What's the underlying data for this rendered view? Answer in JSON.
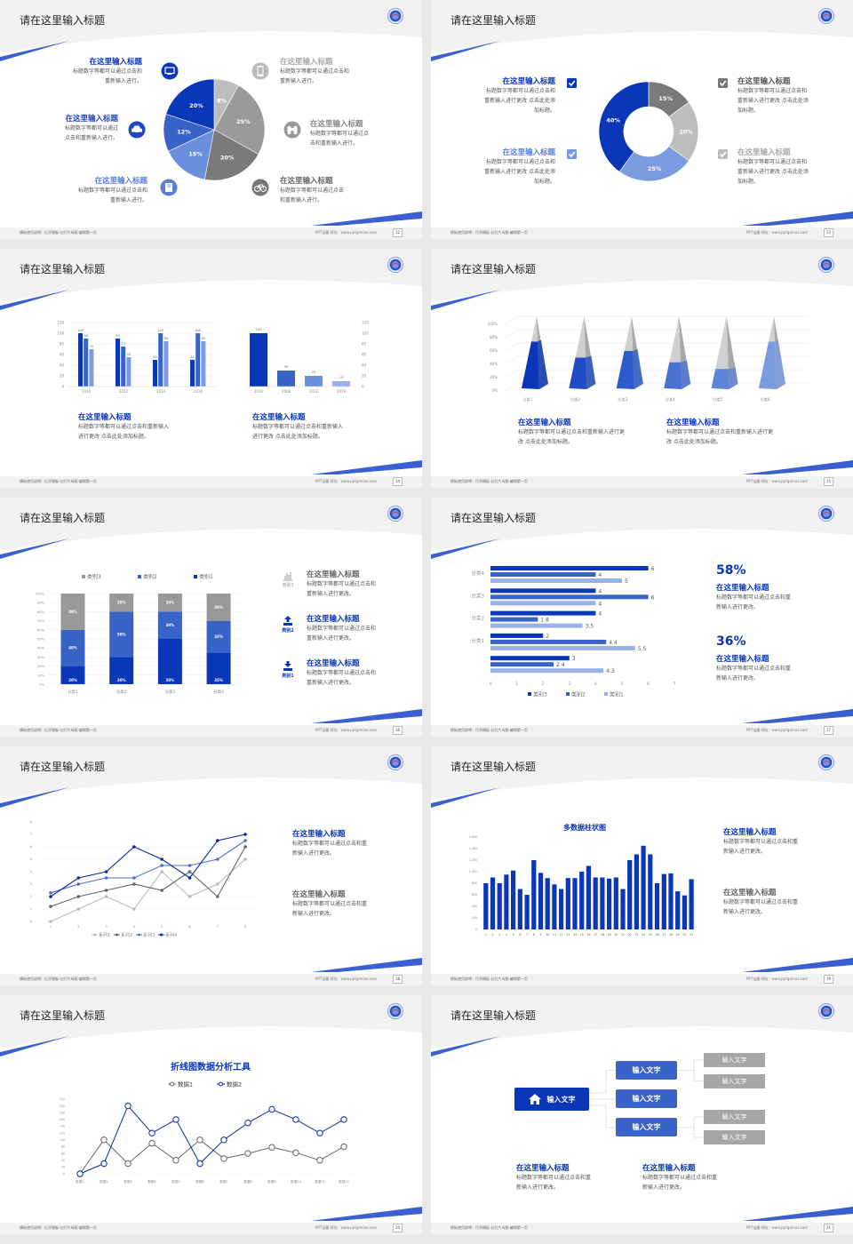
{
  "footer": {
    "left": "模板使用说明：打开模板-幻灯片母版-编辑第一页",
    "right": "PPT宝藏 网址：www.pptgenius.com"
  },
  "colors": {
    "dark_blue": "#0a36b8",
    "mid_blue": "#3a63c8",
    "light_blue": "#7b9be0",
    "pale_blue": "#9bb1e8",
    "dark_gray": "#666666",
    "gray": "#999999",
    "light_gray": "#bbbbbb"
  },
  "slides": [
    {
      "page": "12",
      "title": "请在这里输入标题",
      "left_items": [
        {
          "title": "在这里输入标题",
          "lines": [
            "标题数字等都可以通过点击和",
            "重新输入进行。"
          ],
          "icon": "monitor-icon"
        },
        {
          "title": "在这里输入标题",
          "lines": [
            "标题数字等都可以通过",
            "点击和重新输入进行。"
          ],
          "icon": "car-icon"
        },
        {
          "title": "在这里输入标题",
          "lines": [
            "标题数字等都可以通过点击和",
            "重新输入进行。"
          ],
          "icon": "book-icon"
        }
      ],
      "right_items": [
        {
          "title": "在这里输入标题",
          "lines": [
            "标题数字等都可以通过点击和",
            "重新输入进行。"
          ],
          "icon": "phone-icon"
        },
        {
          "title": "在这里输入标题",
          "lines": [
            "标题数字等都可以通过点",
            "击和重新输入进行。"
          ],
          "icon": "binoculars-icon"
        },
        {
          "title": "在这里输入标题",
          "lines": [
            "标题数字等都可以通过点击",
            "和重新输入进行。"
          ],
          "icon": "bicycle-icon"
        }
      ]
    },
    {
      "page": "13",
      "title": "请在这里输入标题",
      "left_items": [
        {
          "title": "在这里输入标题",
          "lines": [
            "标题数字等都可以通过点击和",
            "重新输入进行更改 点击此处添",
            "加标题。"
          ]
        },
        {
          "title": "在这里输入标题",
          "lines": [
            "标题数字等都可以通过点击和",
            "重新输入进行更改 点击此处添",
            "加标题。"
          ]
        }
      ],
      "right_items": [
        {
          "title": "在这里输入标题",
          "lines": [
            "标题数字等都可以通过点击和",
            "重新输入进行更改 点击此处添",
            "加标题。"
          ]
        },
        {
          "title": "在这里输入标题",
          "lines": [
            "标题数字等都可以通过点击和",
            "重新输入进行更改 点击此处添",
            "加标题。"
          ]
        }
      ]
    },
    {
      "page": "14",
      "title": "请在这里输入标题",
      "items": [
        {
          "title": "在这里输入标题",
          "lines": [
            "标题数字等都可以通过点击和重新输入",
            "进行更改 点击此处添加标题。"
          ]
        },
        {
          "title": "在这里输入标题",
          "lines": [
            "标题数字等都可以通过点击和重新输入",
            "进行更改 点击此处添加标题。"
          ]
        }
      ]
    },
    {
      "page": "15",
      "title": "请在这里输入标题",
      "items": [
        {
          "title": "在这里输入标题",
          "lines": [
            "标题数字等都可以通过点击和重新输入进行更",
            "改 点击此处添加标题。"
          ]
        },
        {
          "title": "在这里输入标题",
          "lines": [
            "标题数字等都可以通过点击和重新输入进行更",
            "改 点击此处添加标题。"
          ]
        }
      ]
    },
    {
      "page": "16",
      "title": "请在这里输入标题",
      "items": [
        {
          "title": "在这里输入标题",
          "lines": [
            "标题数字等都可以通过点击和",
            "重新输入进行更改。"
          ],
          "icon": "bar-chart-icon",
          "tag": "类别3"
        },
        {
          "title": "在这里输入标题",
          "lines": [
            "标题数字等都可以通过点击和",
            "重新输入进行更改。"
          ],
          "icon": "upload-icon",
          "tag": "类别2"
        },
        {
          "title": "在这里输入标题",
          "lines": [
            "标题数字等都可以通过点击和",
            "重新输入进行更改。"
          ],
          "icon": "download-icon",
          "tag": "类别1"
        }
      ]
    },
    {
      "page": "17",
      "title": "请在这里输入标题",
      "stats": [
        {
          "value": "58%",
          "title": "在这里输入标题",
          "lines": [
            "标题数字等都可以通过点击和重",
            "新输入进行更改。"
          ]
        },
        {
          "value": "36%",
          "title": "在这里输入标题",
          "lines": [
            "标题数字等都可以通过点击和重",
            "新输入进行更改。"
          ]
        }
      ]
    },
    {
      "page": "18",
      "title": "请在这里输入标题",
      "items": [
        {
          "title": "在这里输入标题",
          "lines": [
            "标题数字等都可以通过点击和重",
            "新输入进行更改。"
          ]
        },
        {
          "title": "在这里输入标题",
          "lines": [
            "标题数字等都可以通过点击和重",
            "新输入进行更改。"
          ]
        }
      ]
    },
    {
      "page": "19",
      "title": "请在这里输入标题",
      "items": [
        {
          "title": "在这里输入标题",
          "lines": [
            "标题数字等都可以通过点击和重",
            "新输入进行更改。"
          ]
        },
        {
          "title": "在这里输入标题",
          "lines": [
            "标题数字等都可以通过点击和重",
            "新输入进行更改。"
          ]
        }
      ]
    },
    {
      "page": "20",
      "title": "请在这里输入标题"
    },
    {
      "page": "21",
      "title": "请在这里输入标题",
      "tree": {
        "root": "输入文字",
        "mid": [
          "输入文字",
          "输入文字",
          "输入文字"
        ],
        "leaves": [
          "输入文字",
          "输入文字",
          "输入文字",
          "输入文字"
        ]
      },
      "items": [
        {
          "title": "在这里输入标题",
          "lines": [
            "标题数字等都可以通过点击和重",
            "新输入进行更改。"
          ]
        },
        {
          "title": "在这里输入标题",
          "lines": [
            "标题数字等都可以通过点击和重",
            "新输入进行更改。"
          ]
        }
      ]
    }
  ],
  "chart_data": [
    {
      "type": "pie",
      "values": [
        8,
        25,
        20,
        15,
        12,
        20
      ],
      "labels": [
        "8%",
        "25%",
        "20%",
        "15%",
        "12%",
        "20%"
      ],
      "colors": [
        "#bdbdbd",
        "#9a9a9a",
        "#7a7a7a",
        "#6a8fdc",
        "#3a63c8",
        "#0a36b8"
      ]
    },
    {
      "type": "pie",
      "donut": true,
      "values": [
        15,
        20,
        25,
        40
      ],
      "labels": [
        "15%",
        "20%",
        "25%",
        "40%"
      ],
      "colors": [
        "#7a7a7a",
        "#bdbdbd",
        "#7b9be0",
        "#0a36b8"
      ]
    },
    {
      "type": "bar",
      "categories": [
        "2010",
        "2012",
        "2014",
        "2016"
      ],
      "ylim": [
        0,
        120
      ],
      "yticks": [
        "0",
        "20",
        "40",
        "60",
        "80",
        "100",
        "120"
      ],
      "series": [
        {
          "values": [
            100,
            90,
            50,
            50
          ],
          "color": "#0a36b8"
        },
        {
          "values": [
            90,
            75,
            100,
            100
          ],
          "color": "#3a63c8"
        },
        {
          "values": [
            70,
            55,
            85,
            85
          ],
          "color": "#7b9be0"
        }
      ]
    },
    {
      "type": "bar",
      "categories": [
        "2016",
        "2008",
        "2012",
        "2018"
      ],
      "values": [
        100,
        30,
        20,
        10
      ],
      "labels": [
        "100",
        "30",
        "20",
        "10"
      ],
      "ylim": [
        0,
        120
      ],
      "yticks": [
        "0",
        "20",
        "40",
        "60",
        "80",
        "100",
        "120"
      ],
      "colors": [
        "#0a36b8",
        "#3a63c8",
        "#6a8fdc",
        "#9bb1e8"
      ]
    },
    {
      "type": "bar",
      "style": "3d-pyramid",
      "categories": [
        "分类1",
        "分类2",
        "分类3",
        "分类4",
        "分类5",
        "分类6"
      ],
      "values": [
        70,
        46,
        56,
        39,
        29,
        70
      ],
      "ylim": [
        0,
        100
      ],
      "yticks": [
        "0%",
        "20%",
        "40%",
        "60%",
        "80%",
        "100%"
      ],
      "colors": [
        "#0a36b8",
        "#1e4cc4",
        "#2e5bcc",
        "#4a72d4",
        "#5f85da",
        "#7b9be0"
      ]
    },
    {
      "type": "bar",
      "stacked": true,
      "categories": [
        "分类1",
        "分类2",
        "分类3",
        "分类4"
      ],
      "ylim": [
        0,
        100
      ],
      "yticks": [
        "0%",
        "10%",
        "20%",
        "30%",
        "40%",
        "50%",
        "60%",
        "70%",
        "80%",
        "90%",
        "100%"
      ],
      "legend": "top",
      "series": [
        {
          "name": "类别1",
          "values": [
            20,
            30,
            50,
            35
          ],
          "labels": [
            "20%",
            "30%",
            "50%",
            "35%"
          ],
          "color": "#0a36b8"
        },
        {
          "name": "类别2",
          "values": [
            40,
            50,
            30,
            35
          ],
          "labels": [
            "40%",
            "50%",
            "30%",
            "35%"
          ],
          "color": "#3a63c8"
        },
        {
          "name": "类别3",
          "values": [
            40,
            20,
            20,
            30
          ],
          "labels": [
            "40%",
            "20%",
            "20%",
            "30%"
          ],
          "color": "#999999"
        }
      ]
    },
    {
      "type": "bar",
      "orientation": "horizontal",
      "categories": [
        "分类4",
        "分类3",
        "分类2",
        "分类1",
        ""
      ],
      "xlim": [
        0,
        7
      ],
      "xticks": [
        "0",
        "1",
        "2",
        "3",
        "4",
        "5",
        "6",
        "7"
      ],
      "legend": "bottom",
      "series": [
        {
          "name": "类别3",
          "values": [
            6,
            4,
            4,
            2,
            3
          ],
          "labels": [
            "6",
            "4",
            "4",
            "2",
            "3"
          ],
          "color": "#0a36b8"
        },
        {
          "name": "类别2",
          "values": [
            4,
            6,
            1.8,
            4.4,
            2.4
          ],
          "labels": [
            "4",
            "6",
            "1.8",
            "4.4",
            "2.4"
          ],
          "color": "#3a63c8"
        },
        {
          "name": "类别1",
          "values": [
            5,
            4,
            3.5,
            5.5,
            4.3
          ],
          "labels": [
            "5",
            "4",
            "3.5",
            "5.5",
            "4.3"
          ],
          "color": "#9bb1e8"
        }
      ]
    },
    {
      "type": "line",
      "x": [
        "1",
        "2",
        "3",
        "4",
        "5",
        "6",
        "7",
        "8"
      ],
      "ylim": [
        0,
        8
      ],
      "yticks": [
        "0",
        "1",
        "2",
        "3",
        "4",
        "5",
        "6",
        "7",
        "8"
      ],
      "legend": "bottom",
      "series": [
        {
          "name": "系列1",
          "values": [
            0,
            1,
            2,
            1,
            4,
            2,
            3,
            5
          ],
          "color": "#bbbbbb"
        },
        {
          "name": "系列2",
          "values": [
            1.2,
            2,
            2.5,
            3,
            2.5,
            4,
            2,
            6
          ],
          "color": "#666666"
        },
        {
          "name": "系列3",
          "values": [
            2.3,
            3,
            3.5,
            3.5,
            4.5,
            4.5,
            5,
            6.5
          ],
          "color": "#4a6fd0"
        },
        {
          "name": "系列4",
          "values": [
            2,
            3.5,
            4,
            6,
            5,
            3.5,
            6.5,
            7
          ],
          "color": "#0a2aa8"
        }
      ]
    },
    {
      "type": "bar",
      "title": "多数据柱状图",
      "categories": [
        "1",
        "2",
        "3",
        "4",
        "5",
        "6",
        "7",
        "8",
        "9",
        "10",
        "11",
        "12",
        "13",
        "14",
        "15",
        "16",
        "17",
        "18",
        "19",
        "20",
        "21",
        "22",
        "23",
        "24",
        "25",
        "26",
        "27",
        "28",
        "29",
        "30",
        "31"
      ],
      "values": [
        800,
        900,
        800,
        950,
        1020,
        700,
        600,
        1200,
        980,
        890,
        780,
        700,
        890,
        890,
        1000,
        1100,
        900,
        900,
        880,
        900,
        700,
        1200,
        1300,
        1450,
        1300,
        800,
        960,
        970,
        660,
        590,
        870
      ],
      "ylim": [
        0,
        1600
      ],
      "yticks": [
        "0",
        "200",
        "400",
        "600",
        "800",
        "1,000",
        "1,200",
        "1,400",
        "1,600"
      ],
      "color": "#0a36b8"
    },
    {
      "type": "line",
      "title": "折线图数据分析工具",
      "x": [
        "数据1",
        "数据2",
        "数据3",
        "数据4",
        "数据5",
        "数据6",
        "数据7",
        "数据8",
        "数据9",
        "数据10",
        "数据11",
        "数据12"
      ],
      "ylim": [
        0,
        220
      ],
      "yticks": [
        "0",
        "20",
        "40",
        "60",
        "80",
        "100",
        "120",
        "140",
        "160",
        "180",
        "200",
        "220"
      ],
      "legend": "top",
      "series": [
        {
          "name": "数据1",
          "values": [
            0,
            100,
            30,
            90,
            40,
            100,
            45,
            60,
            78,
            62,
            40,
            80
          ],
          "color": "#666666"
        },
        {
          "name": "数据2",
          "values": [
            0,
            30,
            200,
            120,
            160,
            30,
            100,
            150,
            190,
            160,
            120,
            160
          ],
          "color": "#0a2aa8"
        }
      ]
    }
  ]
}
